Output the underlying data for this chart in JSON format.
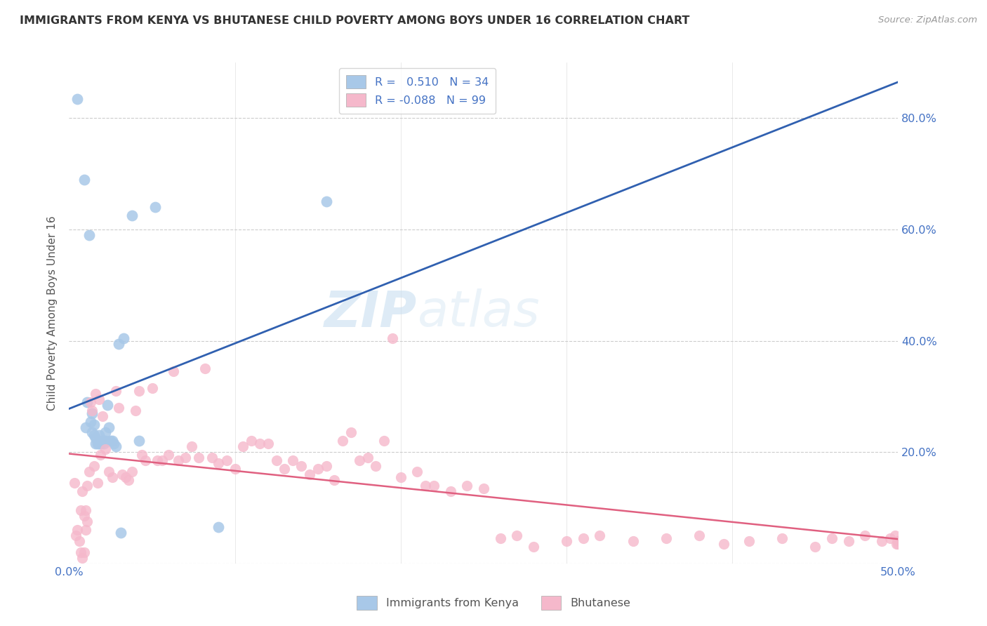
{
  "title": "IMMIGRANTS FROM KENYA VS BHUTANESE CHILD POVERTY AMONG BOYS UNDER 16 CORRELATION CHART",
  "source": "Source: ZipAtlas.com",
  "ylabel": "Child Poverty Among Boys Under 16",
  "xlim": [
    0.0,
    0.5
  ],
  "ylim": [
    0.0,
    0.9
  ],
  "r_kenya": 0.51,
  "n_kenya": 34,
  "r_bhutan": -0.088,
  "n_bhutan": 99,
  "kenya_color": "#a8c8e8",
  "bhutan_color": "#f5b8cb",
  "line_kenya_color": "#3060b0",
  "line_bhutan_color": "#e06080",
  "watermark_zip": "ZIP",
  "watermark_atlas": "atlas",
  "kenya_x": [
    0.005,
    0.009,
    0.01,
    0.011,
    0.012,
    0.013,
    0.014,
    0.014,
    0.015,
    0.015,
    0.016,
    0.016,
    0.017,
    0.018,
    0.018,
    0.019,
    0.02,
    0.021,
    0.022,
    0.022,
    0.023,
    0.024,
    0.025,
    0.026,
    0.027,
    0.028,
    0.03,
    0.031,
    0.033,
    0.038,
    0.042,
    0.052,
    0.09,
    0.155
  ],
  "kenya_y": [
    0.835,
    0.69,
    0.245,
    0.29,
    0.59,
    0.255,
    0.27,
    0.235,
    0.25,
    0.23,
    0.215,
    0.225,
    0.215,
    0.215,
    0.23,
    0.215,
    0.22,
    0.215,
    0.235,
    0.22,
    0.285,
    0.245,
    0.22,
    0.22,
    0.215,
    0.21,
    0.395,
    0.055,
    0.405,
    0.625,
    0.22,
    0.64,
    0.065,
    0.65
  ],
  "bhutan_x": [
    0.003,
    0.004,
    0.005,
    0.006,
    0.007,
    0.007,
    0.008,
    0.008,
    0.009,
    0.009,
    0.01,
    0.01,
    0.011,
    0.011,
    0.012,
    0.013,
    0.014,
    0.015,
    0.016,
    0.017,
    0.018,
    0.019,
    0.02,
    0.022,
    0.024,
    0.026,
    0.028,
    0.03,
    0.032,
    0.034,
    0.036,
    0.038,
    0.04,
    0.042,
    0.044,
    0.046,
    0.05,
    0.053,
    0.056,
    0.06,
    0.063,
    0.066,
    0.07,
    0.074,
    0.078,
    0.082,
    0.086,
    0.09,
    0.095,
    0.1,
    0.105,
    0.11,
    0.115,
    0.12,
    0.125,
    0.13,
    0.135,
    0.14,
    0.145,
    0.15,
    0.155,
    0.16,
    0.165,
    0.17,
    0.175,
    0.18,
    0.185,
    0.19,
    0.195,
    0.2,
    0.21,
    0.215,
    0.22,
    0.23,
    0.24,
    0.25,
    0.26,
    0.27,
    0.28,
    0.3,
    0.31,
    0.32,
    0.34,
    0.36,
    0.38,
    0.395,
    0.41,
    0.43,
    0.45,
    0.46,
    0.47,
    0.48,
    0.49,
    0.495,
    0.498,
    0.499,
    0.5,
    0.5,
    0.5
  ],
  "bhutan_y": [
    0.145,
    0.05,
    0.06,
    0.04,
    0.095,
    0.02,
    0.01,
    0.13,
    0.085,
    0.02,
    0.06,
    0.095,
    0.14,
    0.075,
    0.165,
    0.29,
    0.275,
    0.175,
    0.305,
    0.145,
    0.295,
    0.195,
    0.265,
    0.205,
    0.165,
    0.155,
    0.31,
    0.28,
    0.16,
    0.155,
    0.15,
    0.165,
    0.275,
    0.31,
    0.195,
    0.185,
    0.315,
    0.185,
    0.185,
    0.195,
    0.345,
    0.185,
    0.19,
    0.21,
    0.19,
    0.35,
    0.19,
    0.18,
    0.185,
    0.17,
    0.21,
    0.22,
    0.215,
    0.215,
    0.185,
    0.17,
    0.185,
    0.175,
    0.16,
    0.17,
    0.175,
    0.15,
    0.22,
    0.235,
    0.185,
    0.19,
    0.175,
    0.22,
    0.405,
    0.155,
    0.165,
    0.14,
    0.14,
    0.13,
    0.14,
    0.135,
    0.045,
    0.05,
    0.03,
    0.04,
    0.045,
    0.05,
    0.04,
    0.045,
    0.05,
    0.035,
    0.04,
    0.045,
    0.03,
    0.045,
    0.04,
    0.05,
    0.04,
    0.045,
    0.05,
    0.035,
    0.04,
    0.04,
    0.035
  ]
}
